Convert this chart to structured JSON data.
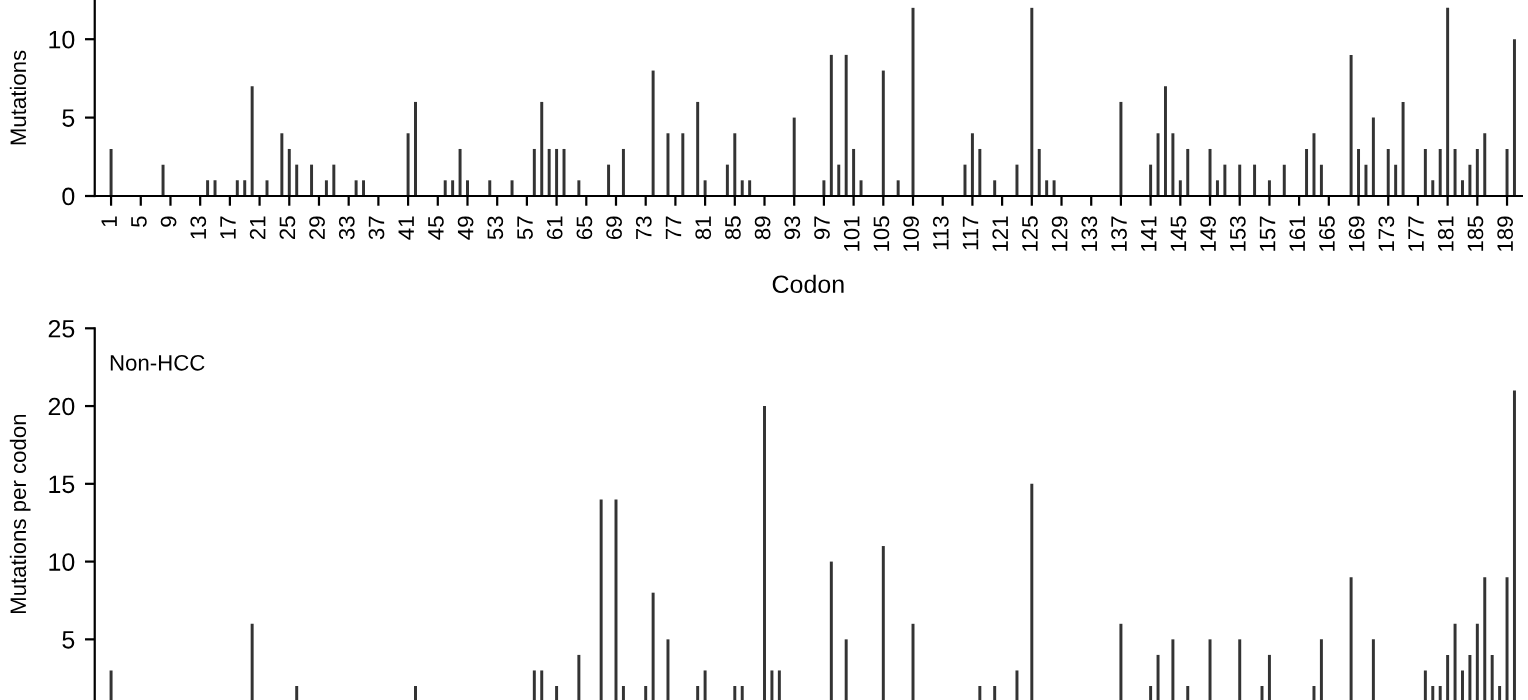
{
  "chart_data": [
    {
      "type": "bar",
      "xlabel": "Codon",
      "ylabel": "Mutations",
      "color": "#333333",
      "x": [
        1,
        8,
        14,
        15,
        18,
        19,
        20,
        22,
        24,
        25,
        26,
        28,
        30,
        31,
        34,
        35,
        41,
        42,
        46,
        47,
        48,
        49,
        52,
        55,
        58,
        59,
        60,
        61,
        62,
        64,
        67,
        68,
        69,
        70,
        74,
        76,
        78,
        80,
        81,
        84,
        85,
        86,
        87,
        89,
        90,
        93,
        97,
        98,
        99,
        100,
        101,
        102,
        105,
        107,
        109,
        116,
        117,
        118,
        120,
        123,
        125,
        126,
        127,
        128,
        137,
        141,
        142,
        143,
        144,
        145,
        146,
        149,
        150,
        151,
        153,
        155,
        157,
        159,
        162,
        163,
        164,
        168,
        169,
        170,
        171,
        173,
        174,
        175,
        178,
        179,
        180,
        181,
        182,
        183,
        184,
        185,
        186,
        189,
        190
      ],
      "values": [
        3,
        2,
        1,
        1,
        1,
        1,
        7,
        1,
        4,
        3,
        2,
        2,
        1,
        2,
        1,
        1,
        4,
        6,
        1,
        1,
        3,
        1,
        1,
        1,
        3,
        6,
        3,
        3,
        3,
        1,
        null,
        2,
        null,
        3,
        8,
        4,
        4,
        6,
        1,
        2,
        4,
        1,
        1,
        null,
        null,
        5,
        1,
        9,
        2,
        9,
        3,
        1,
        8,
        1,
        12,
        2,
        4,
        3,
        1,
        2,
        12,
        3,
        1,
        1,
        6,
        2,
        4,
        7,
        4,
        1,
        3,
        3,
        1,
        2,
        2,
        2,
        1,
        2,
        3,
        4,
        2,
        9,
        3,
        2,
        5,
        3,
        2,
        6,
        3,
        1,
        3,
        12,
        3,
        1,
        2,
        3,
        4,
        3,
        10
      ],
      "xlim": [
        -1.2,
        191
      ],
      "xticks": [
        1,
        5,
        9,
        13,
        17,
        21,
        25,
        29,
        33,
        37,
        41,
        45,
        49,
        53,
        57,
        61,
        65,
        69,
        73,
        77,
        81,
        85,
        89,
        93,
        97,
        101,
        105,
        109,
        113,
        117,
        121,
        125,
        129,
        133,
        137,
        141,
        145,
        149,
        153,
        157,
        161,
        165,
        169,
        173,
        177,
        181,
        185,
        189
      ],
      "ylim": [
        0,
        12.5
      ],
      "yticks": [
        0,
        5,
        10
      ],
      "grid": false
    },
    {
      "type": "bar",
      "ylabel": "Mutations per codon",
      "color": "#333333",
      "annotations": [
        "Non-HCC"
      ],
      "tick_labels": "y",
      "x": [
        1,
        20,
        26,
        42,
        58,
        59,
        61,
        64,
        67,
        69,
        70,
        73,
        74,
        76,
        80,
        81,
        85,
        86,
        89,
        90,
        91,
        98,
        100,
        105,
        109,
        118,
        120,
        123,
        125,
        137,
        141,
        142,
        144,
        146,
        149,
        153,
        156,
        157,
        163,
        164,
        168,
        171,
        178,
        179,
        180,
        181,
        182,
        183,
        184,
        185,
        186,
        187,
        188,
        189,
        190
      ],
      "values": [
        3,
        6,
        2,
        2,
        3,
        3,
        2,
        4,
        14,
        14,
        2,
        2,
        8,
        5,
        2,
        3,
        2,
        2,
        20,
        3,
        3,
        10,
        5,
        11,
        6,
        2,
        2,
        3,
        15,
        6,
        2,
        4,
        5,
        2,
        5,
        5,
        2,
        4,
        2,
        5,
        9,
        5,
        3,
        2,
        2,
        4,
        6,
        3,
        4,
        6,
        9,
        4,
        2,
        9,
        21
      ],
      "xlim": [
        -1.2,
        191
      ],
      "ylim": [
        1.1,
        25
      ],
      "yticks": [
        5,
        10,
        15,
        20,
        25
      ],
      "grid": false
    }
  ]
}
